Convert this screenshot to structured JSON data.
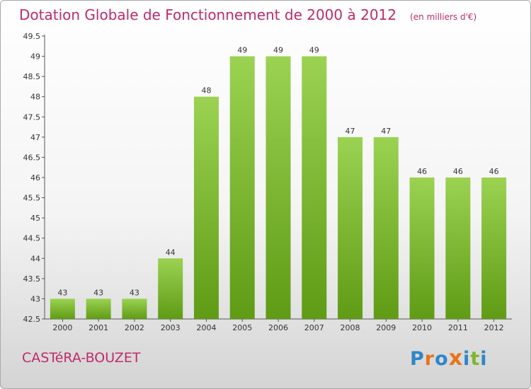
{
  "header": {
    "title": "Dotation Globale de Fonctionnement de 2000 à 2012",
    "subtitle": "(en milliers d'€)"
  },
  "commune": "CASTéRA-BOUZET",
  "logo": {
    "text": "Proxiti",
    "colors": [
      "#2f86c7",
      "#e8731c",
      "#2f86c7",
      "#e8731c",
      "#2f86c7",
      "#7cb82f",
      "#2f86c7"
    ]
  },
  "colors": {
    "bar_top": "#9bd252",
    "bar_bottom": "#5f9b15",
    "title": "#c02a6b"
  },
  "chart_data": {
    "type": "bar",
    "title": "Dotation Globale de Fonctionnement de 2000 à 2012",
    "subtitle": "(en milliers d'€)",
    "categories": [
      "2000",
      "2001",
      "2002",
      "2003",
      "2004",
      "2005",
      "2006",
      "2007",
      "2008",
      "2009",
      "2010",
      "2011",
      "2012"
    ],
    "values": [
      43,
      43,
      43,
      44,
      48,
      49,
      49,
      49,
      47,
      47,
      46,
      46,
      46
    ],
    "data_labels": [
      "43",
      "43",
      "43",
      "44",
      "48",
      "49",
      "49",
      "49",
      "47",
      "47",
      "46",
      "46",
      "46"
    ],
    "ylim": [
      42.5,
      49.5
    ],
    "yticks": [
      "42.5",
      "43",
      "43.5",
      "44",
      "44.5",
      "45",
      "45.5",
      "46",
      "46.5",
      "47",
      "47.5",
      "48",
      "48.5",
      "49",
      "49.5"
    ],
    "xlabel": "",
    "ylabel": "",
    "grid": false
  }
}
